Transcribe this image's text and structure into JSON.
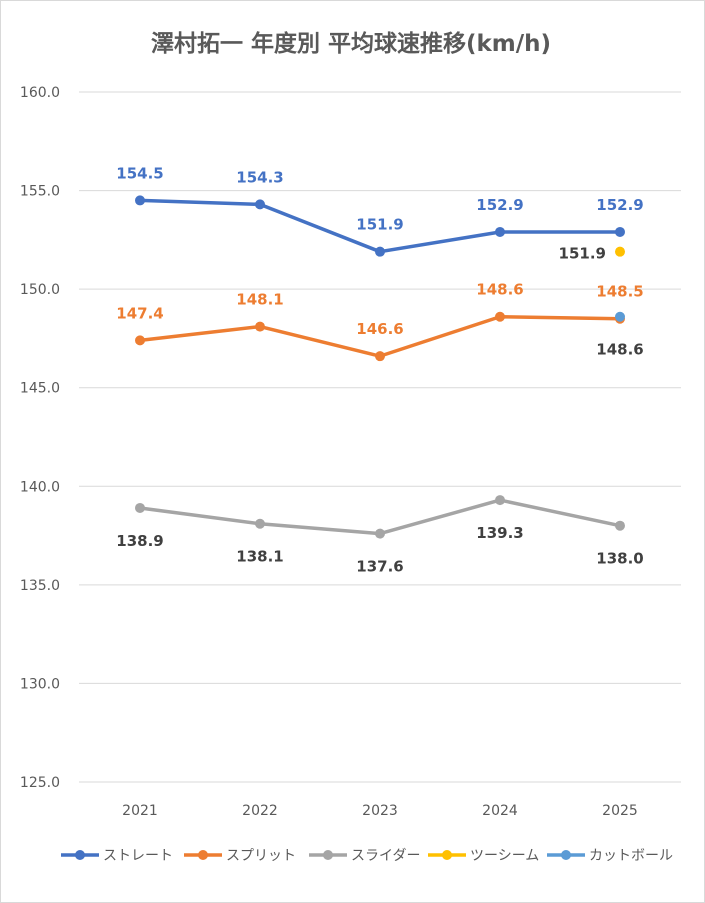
{
  "chart_data": {
    "type": "line",
    "title": "澤村拓一 年度別 平均球速推移(km/h)",
    "xlabel": "",
    "ylabel": "",
    "categories": [
      "2021",
      "2022",
      "2023",
      "2024",
      "2025"
    ],
    "ylim": [
      125.0,
      160.0
    ],
    "ytick_step": 5.0,
    "yticks": [
      "125.0",
      "130.0",
      "135.0",
      "140.0",
      "145.0",
      "150.0",
      "155.0",
      "160.0"
    ],
    "grid": "horizontal",
    "legend_position": "bottom",
    "series": [
      {
        "name": "ストレート",
        "color": "#4472c4",
        "values": [
          154.5,
          154.3,
          151.9,
          152.9,
          152.9
        ],
        "labels": [
          "154.5",
          "154.3",
          "151.9",
          "152.9",
          "152.9"
        ],
        "label_color": "#4472c4",
        "label_pos": "above"
      },
      {
        "name": "スプリット",
        "color": "#ed7d31",
        "values": [
          147.4,
          148.1,
          146.6,
          148.6,
          148.5
        ],
        "labels": [
          "147.4",
          "148.1",
          "146.6",
          "148.6",
          "148.5"
        ],
        "label_color": "#ed7d31",
        "label_pos": "above"
      },
      {
        "name": "スライダー",
        "color": "#a5a5a5",
        "values": [
          138.9,
          138.1,
          137.6,
          139.3,
          138.0
        ],
        "labels": [
          "138.9",
          "138.1",
          "137.6",
          "139.3",
          "138.0"
        ],
        "label_color": "#404040",
        "label_pos": "below"
      },
      {
        "name": "ツーシーム",
        "color": "#ffc000",
        "values": [
          null,
          null,
          null,
          null,
          151.9
        ],
        "labels": [
          null,
          null,
          null,
          null,
          "151.9"
        ],
        "label_color": "#404040",
        "label_pos": "left"
      },
      {
        "name": "カットボール",
        "color": "#5b9bd5",
        "values": [
          null,
          null,
          null,
          null,
          148.6
        ],
        "labels": [
          null,
          null,
          null,
          null,
          "148.6"
        ],
        "label_color": "#404040",
        "label_pos": "below"
      }
    ]
  }
}
